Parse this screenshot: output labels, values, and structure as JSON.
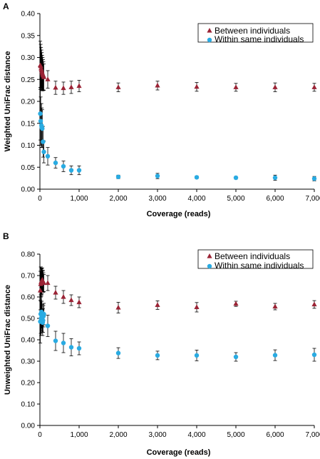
{
  "chart_data": [
    {
      "panel_label": "A",
      "type": "scatter",
      "xlabel": "Coverage (reads)",
      "ylabel": "Weighted UniFrac distance",
      "xlim": [
        0,
        7000
      ],
      "ylim": [
        0,
        0.4
      ],
      "xticks": [
        0,
        1000,
        2000,
        3000,
        4000,
        5000,
        6000,
        7000
      ],
      "xtick_labels": [
        "0",
        "1,000",
        "2,000",
        "3,000",
        "4,000",
        "5,000",
        "6,000",
        "7,000"
      ],
      "yticks": [
        0,
        0.05,
        0.1,
        0.15,
        0.2,
        0.25,
        0.3,
        0.35,
        0.4
      ],
      "ytick_labels": [
        "0.00",
        "0.05",
        "0.10",
        "0.15",
        "0.20",
        "0.25",
        "0.30",
        "0.35",
        "0.40"
      ],
      "legend_position": "top-right",
      "grid": false,
      "series": [
        {
          "name": "Between individuals",
          "marker": "triangle",
          "color": "#9b2335",
          "x": [
            10,
            20,
            30,
            40,
            50,
            60,
            70,
            80,
            90,
            100,
            200,
            400,
            600,
            800,
            1000,
            2000,
            3000,
            4000,
            5000,
            6000,
            7000
          ],
          "y": [
            0.282,
            0.28,
            0.275,
            0.272,
            0.268,
            0.265,
            0.262,
            0.26,
            0.258,
            0.255,
            0.25,
            0.231,
            0.23,
            0.232,
            0.235,
            0.232,
            0.236,
            0.233,
            0.232,
            0.232,
            0.232
          ],
          "err": [
            0.055,
            0.05,
            0.048,
            0.045,
            0.043,
            0.04,
            0.038,
            0.035,
            0.032,
            0.03,
            0.02,
            0.015,
            0.014,
            0.014,
            0.013,
            0.01,
            0.01,
            0.01,
            0.009,
            0.01,
            0.009
          ]
        },
        {
          "name": "Within same individuals",
          "marker": "circle",
          "color": "#29abe2",
          "x": [
            10,
            20,
            40,
            50,
            60,
            80,
            100,
            200,
            400,
            600,
            800,
            1000,
            2000,
            3000,
            4000,
            5000,
            6000,
            7000
          ],
          "y": [
            0.172,
            0.155,
            0.145,
            0.14,
            0.138,
            0.108,
            0.085,
            0.075,
            0.06,
            0.052,
            0.043,
            0.043,
            0.028,
            0.03,
            0.027,
            0.026,
            0.026,
            0.024
          ],
          "err": [
            0.06,
            0.055,
            0.05,
            0.045,
            0.043,
            0.035,
            0.025,
            0.02,
            0.012,
            0.012,
            0.01,
            0.01,
            0.004,
            0.006,
            0.003,
            0.003,
            0.006,
            0.005
          ]
        }
      ]
    },
    {
      "panel_label": "B",
      "type": "scatter",
      "xlabel": "Coverage (reads)",
      "ylabel": "Unweighted UniFrac distance",
      "xlim": [
        0,
        7000
      ],
      "ylim": [
        0,
        0.8
      ],
      "xticks": [
        0,
        1000,
        2000,
        3000,
        4000,
        5000,
        6000,
        7000
      ],
      "xtick_labels": [
        "0",
        "1,000",
        "2,000",
        "3,000",
        "4,000",
        "5,000",
        "6,000",
        "7,000"
      ],
      "yticks": [
        0,
        0.1,
        0.2,
        0.3,
        0.4,
        0.5,
        0.6,
        0.7,
        0.8
      ],
      "ytick_labels": [
        "0.00",
        "0.10",
        "0.20",
        "0.30",
        "0.40",
        "0.50",
        "0.60",
        "0.70",
        "0.80"
      ],
      "legend_position": "top-right",
      "grid": false,
      "series": [
        {
          "name": "Between individuals",
          "marker": "triangle",
          "color": "#9b2335",
          "x": [
            10,
            20,
            30,
            40,
            50,
            60,
            70,
            80,
            90,
            100,
            200,
            400,
            600,
            800,
            1000,
            2000,
            3000,
            4000,
            5000,
            6000,
            7000
          ],
          "y": [
            0.63,
            0.66,
            0.67,
            0.672,
            0.675,
            0.68,
            0.676,
            0.672,
            0.668,
            0.665,
            0.665,
            0.62,
            0.6,
            0.585,
            0.575,
            0.55,
            0.562,
            0.552,
            0.568,
            0.555,
            0.565
          ],
          "err": [
            0.09,
            0.08,
            0.07,
            0.06,
            0.06,
            0.055,
            0.05,
            0.05,
            0.045,
            0.04,
            0.035,
            0.03,
            0.03,
            0.025,
            0.025,
            0.025,
            0.02,
            0.022,
            0.012,
            0.015,
            0.018
          ]
        },
        {
          "name": "Within same individuals",
          "marker": "circle",
          "color": "#29abe2",
          "x": [
            10,
            20,
            30,
            40,
            50,
            60,
            70,
            80,
            90,
            100,
            200,
            400,
            600,
            800,
            1000,
            2000,
            3000,
            4000,
            5000,
            6000,
            7000
          ],
          "y": [
            0.485,
            0.52,
            0.5,
            0.53,
            0.51,
            0.5,
            0.48,
            0.49,
            0.51,
            0.52,
            0.465,
            0.395,
            0.385,
            0.365,
            0.36,
            0.338,
            0.327,
            0.327,
            0.32,
            0.328,
            0.33
          ],
          "err": [
            0.1,
            0.09,
            0.08,
            0.075,
            0.07,
            0.065,
            0.06,
            0.055,
            0.05,
            0.05,
            0.05,
            0.045,
            0.045,
            0.04,
            0.03,
            0.025,
            0.02,
            0.025,
            0.02,
            0.025,
            0.03
          ]
        }
      ]
    }
  ]
}
